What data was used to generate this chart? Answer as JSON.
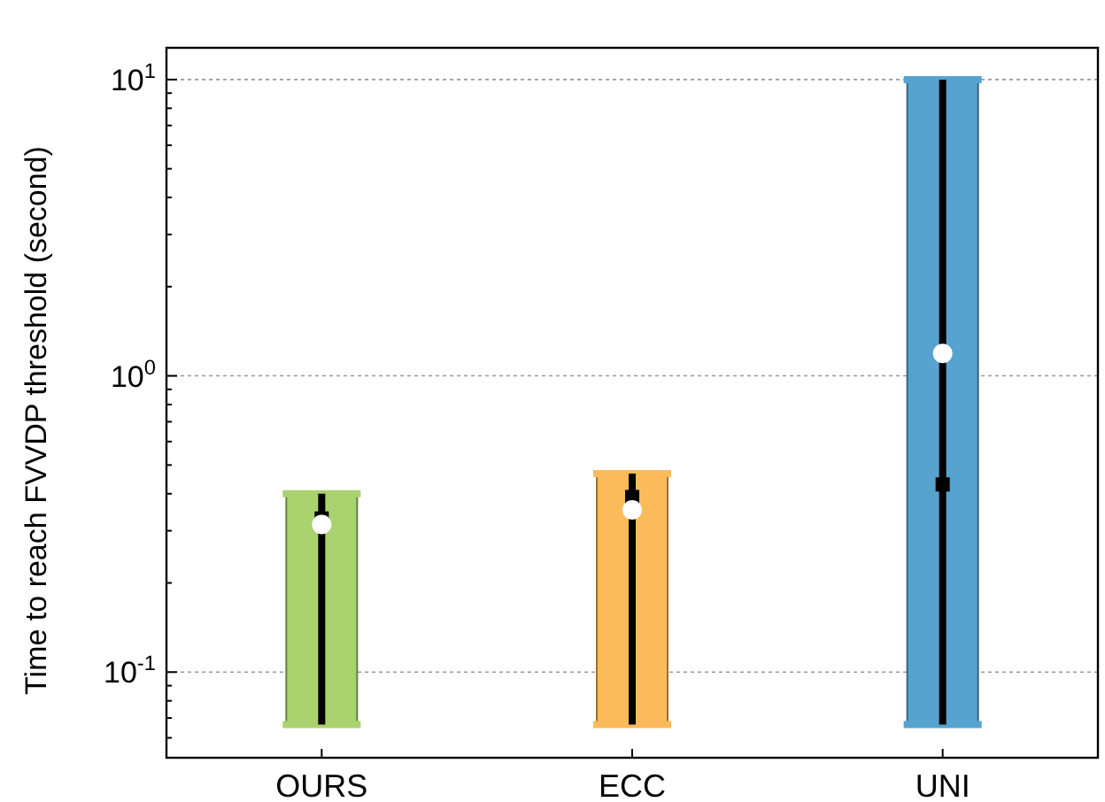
{
  "chart_data": {
    "type": "box",
    "ylabel": "Time to reach FVVDP threshold (second)",
    "categories": [
      "OURS",
      "ECC",
      "UNI"
    ],
    "colors": [
      "#aad26e",
      "#fbbb5a",
      "#56a3d0"
    ],
    "boxes": [
      {
        "low": 0.0665,
        "q1": 0.0665,
        "median": 0.33,
        "q3": 0.4,
        "high": 0.4,
        "mean": 0.315
      },
      {
        "low": 0.0665,
        "q1": 0.0665,
        "median": 0.39,
        "q3": 0.468,
        "high": 0.468,
        "mean": 0.353
      },
      {
        "low": 0.0665,
        "q1": 0.0665,
        "median": 0.43,
        "q3": 10,
        "high": 10,
        "mean": 1.19
      }
    ],
    "log": true,
    "ylim": [
      0.0514,
      12.8
    ],
    "yticks": [
      {
        "value": 0.06,
        "label": null
      },
      {
        "value": 0.07,
        "label": null
      },
      {
        "value": 0.08,
        "label": null
      },
      {
        "value": 0.09,
        "label": null
      },
      {
        "value": 0.1,
        "label": "10$^{-1}$"
      },
      {
        "value": 0.2,
        "label": null
      },
      {
        "value": 0.3,
        "label": null
      },
      {
        "value": 0.4,
        "label": null
      },
      {
        "value": 0.5,
        "label": null
      },
      {
        "value": 0.6,
        "label": null
      },
      {
        "value": 0.7,
        "label": null
      },
      {
        "value": 0.8,
        "label": null
      },
      {
        "value": 0.9,
        "label": null
      },
      {
        "value": 1,
        "label": "10$^{0}$"
      },
      {
        "value": 2,
        "label": null
      },
      {
        "value": 3,
        "label": null
      },
      {
        "value": 4,
        "label": null
      },
      {
        "value": 5,
        "label": null
      },
      {
        "value": 6,
        "label": null
      },
      {
        "value": 7,
        "label": null
      },
      {
        "value": 8,
        "label": null
      },
      {
        "value": 9,
        "label": null
      },
      {
        "value": 10,
        "label": "10$^{1}$"
      }
    ],
    "grid": "y"
  }
}
